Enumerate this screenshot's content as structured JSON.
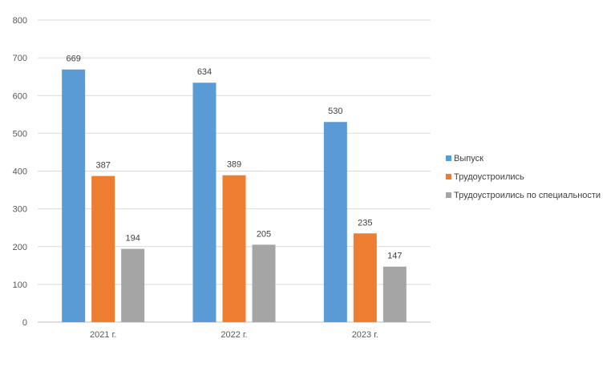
{
  "chart_data": {
    "type": "bar",
    "title": "",
    "xlabel": "",
    "ylabel": "",
    "categories": [
      "2021 г.",
      "2022 г.",
      "2023 г."
    ],
    "series": [
      {
        "name": "Выпуск",
        "values": [
          669,
          634,
          530
        ],
        "color": "#5B9BD5"
      },
      {
        "name": "Трудоустроились",
        "values": [
          387,
          389,
          235
        ],
        "color": "#ED7D31"
      },
      {
        "name": "Трудоустроились по специальности",
        "values": [
          194,
          205,
          147
        ],
        "color": "#A5A5A5"
      }
    ],
    "ylim": [
      0,
      800
    ],
    "yticks": [
      0,
      100,
      200,
      300,
      400,
      500,
      600,
      700,
      800
    ],
    "grid": true,
    "legend_position": "right"
  }
}
